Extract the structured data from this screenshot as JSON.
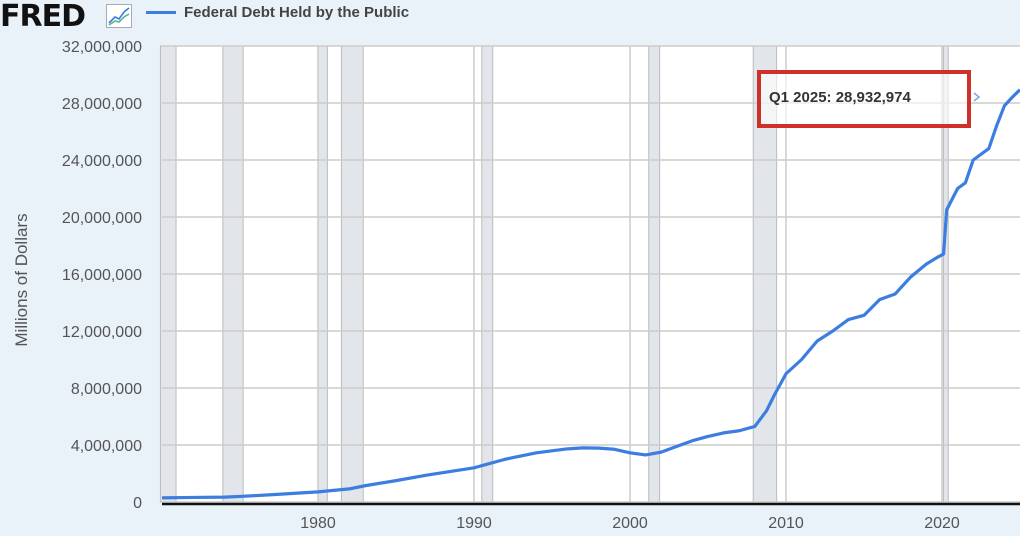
{
  "header": {
    "logo": "FRED",
    "logo_icon": "line-chart-icon",
    "legend_label": "Federal Debt Held by the Public"
  },
  "tooltip": {
    "text": "Q1 2025:  28,932,974"
  },
  "colors": {
    "series": "#3b7de0",
    "recession": "#e2e6ea",
    "highlight": "#d0302a"
  },
  "chart_data": {
    "type": "line",
    "title": "",
    "ylabel": "Millions of Dollars",
    "xlabel": "",
    "xlim": [
      1970,
      2025
    ],
    "ylim": [
      0,
      32000000
    ],
    "yticks": [
      0,
      4000000,
      8000000,
      12000000,
      16000000,
      20000000,
      24000000,
      28000000,
      32000000
    ],
    "ytick_labels": [
      "0",
      "4,000,000",
      "8,000,000",
      "12,000,000",
      "16,000,000",
      "20,000,000",
      "24,000,000",
      "28,000,000",
      "32,000,000"
    ],
    "xticks": [
      1980,
      1990,
      2000,
      2010,
      2020
    ],
    "xtick_labels": [
      "1980",
      "1990",
      "2000",
      "2010",
      "2020"
    ],
    "grid": true,
    "legend": "top-left",
    "recessions": [
      [
        1969.9,
        1970.9
      ],
      [
        1973.9,
        1975.2
      ],
      [
        1980.0,
        1980.6
      ],
      [
        1981.5,
        1982.9
      ],
      [
        1990.5,
        1991.2
      ],
      [
        2001.2,
        2001.9
      ],
      [
        2007.9,
        2009.4
      ],
      [
        2020.1,
        2020.4
      ]
    ],
    "series": [
      {
        "name": "Federal Debt Held by the Public",
        "x": [
          1970,
          1972,
          1974,
          1975,
          1977,
          1980,
          1982,
          1983,
          1985,
          1987,
          1990,
          1992,
          1994,
          1996,
          1997,
          1998,
          1999,
          2000,
          2001,
          2002,
          2003,
          2004,
          2005,
          2006,
          2007,
          2008,
          2008.75,
          2009.25,
          2010,
          2011,
          2012,
          2013,
          2014,
          2015,
          2016,
          2017,
          2018,
          2019,
          2019.75,
          2020.1,
          2020.3,
          2021,
          2021.5,
          2022,
          2023,
          2023.5,
          2024,
          2024.5,
          2025
        ],
        "y": [
          290000,
          320000,
          340000,
          390000,
          510000,
          710000,
          920000,
          1140000,
          1500000,
          1890000,
          2400000,
          3000000,
          3450000,
          3730000,
          3800000,
          3780000,
          3700000,
          3450000,
          3300000,
          3500000,
          3900000,
          4300000,
          4600000,
          4850000,
          5000000,
          5300000,
          6400000,
          7500000,
          9000000,
          10000000,
          11300000,
          12000000,
          12800000,
          13100000,
          14200000,
          14600000,
          15800000,
          16700000,
          17200000,
          17400000,
          20500000,
          22000000,
          22400000,
          24000000,
          24800000,
          26400000,
          27800000,
          28400000,
          28932974
        ]
      }
    ]
  }
}
